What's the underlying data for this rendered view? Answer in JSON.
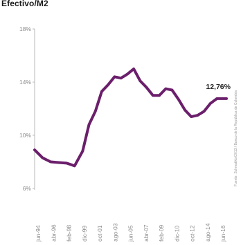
{
  "chart_data": {
    "type": "line",
    "title": "Efectivo/M2",
    "annotation": "12,76%",
    "source_note": "Fuente: Schmatikbi/2013 / Banco de la República de Colombia",
    "color": "#6b1f6b",
    "ylim": [
      6,
      18
    ],
    "y_ticks": [
      {
        "value": 6,
        "label": "6%"
      },
      {
        "value": 10,
        "label": "10%"
      },
      {
        "value": 14,
        "label": "14%"
      },
      {
        "value": 18,
        "label": "18%"
      }
    ],
    "x_ticks": [
      "jun-94",
      "abr-96",
      "feb-98",
      "dic-99",
      "oct-01",
      "ago-03",
      "jun-05",
      "abr-07",
      "feb-09",
      "dic-10",
      "oct-12",
      "ago-14",
      "jun-16"
    ],
    "grid": false,
    "legend": "none",
    "x": [
      0,
      0.5,
      1,
      1.5,
      2,
      2.5,
      3,
      3.4,
      3.8,
      4.2,
      4.6,
      5,
      5.4,
      5.8,
      6.2,
      6.6,
      7,
      7.4,
      7.8,
      8.2,
      8.6,
      9,
      9.4,
      9.8,
      10.2,
      10.6,
      11,
      11.4,
      11.8,
      12
    ],
    "y": [
      8.9,
      8.3,
      8.0,
      7.95,
      7.9,
      7.7,
      8.8,
      10.8,
      11.8,
      13.3,
      13.8,
      14.4,
      14.3,
      14.6,
      15.0,
      14.1,
      13.6,
      13.0,
      13.0,
      13.5,
      13.4,
      12.7,
      11.9,
      11.4,
      11.5,
      11.8,
      12.4,
      12.76,
      12.76,
      12.76
    ]
  }
}
